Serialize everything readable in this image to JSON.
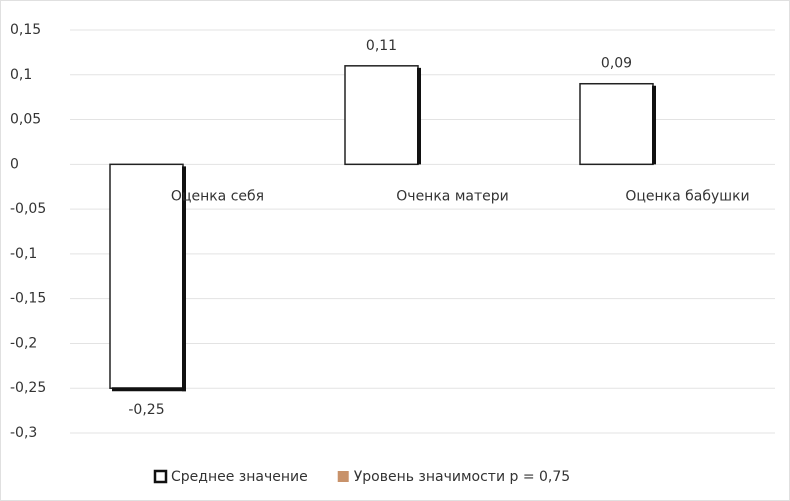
{
  "chart_data": {
    "type": "bar",
    "categories": [
      "Оценка себя",
      "Оченка матери",
      "Оценка бабушки"
    ],
    "series": [
      {
        "name": "Среднее значение",
        "color": "#ffffff",
        "values": [
          -0.25,
          0.11,
          0.09
        ],
        "value_labels": [
          "-0,25",
          "0,11",
          "0,09"
        ]
      },
      {
        "name": "Уровень значимости р = 0,75",
        "color": "#c8926a",
        "values": [
          0,
          0,
          0
        ]
      }
    ],
    "ylim": [
      -0.3,
      0.15
    ],
    "yticks": [
      {
        "value": -0.3,
        "label": "-0,3"
      },
      {
        "value": -0.25,
        "label": "-0,25"
      },
      {
        "value": -0.2,
        "label": "-0,2"
      },
      {
        "value": -0.15,
        "label": "-0,15"
      },
      {
        "value": -0.1,
        "label": "-0,1"
      },
      {
        "value": -0.05,
        "label": "-0,05"
      },
      0,
      {
        "value": 0.05,
        "label": "0,05"
      },
      {
        "value": 0.1,
        "label": "0,1"
      },
      {
        "value": 0.15,
        "label": "0,15"
      }
    ],
    "grid": true,
    "legend": "bottom"
  }
}
